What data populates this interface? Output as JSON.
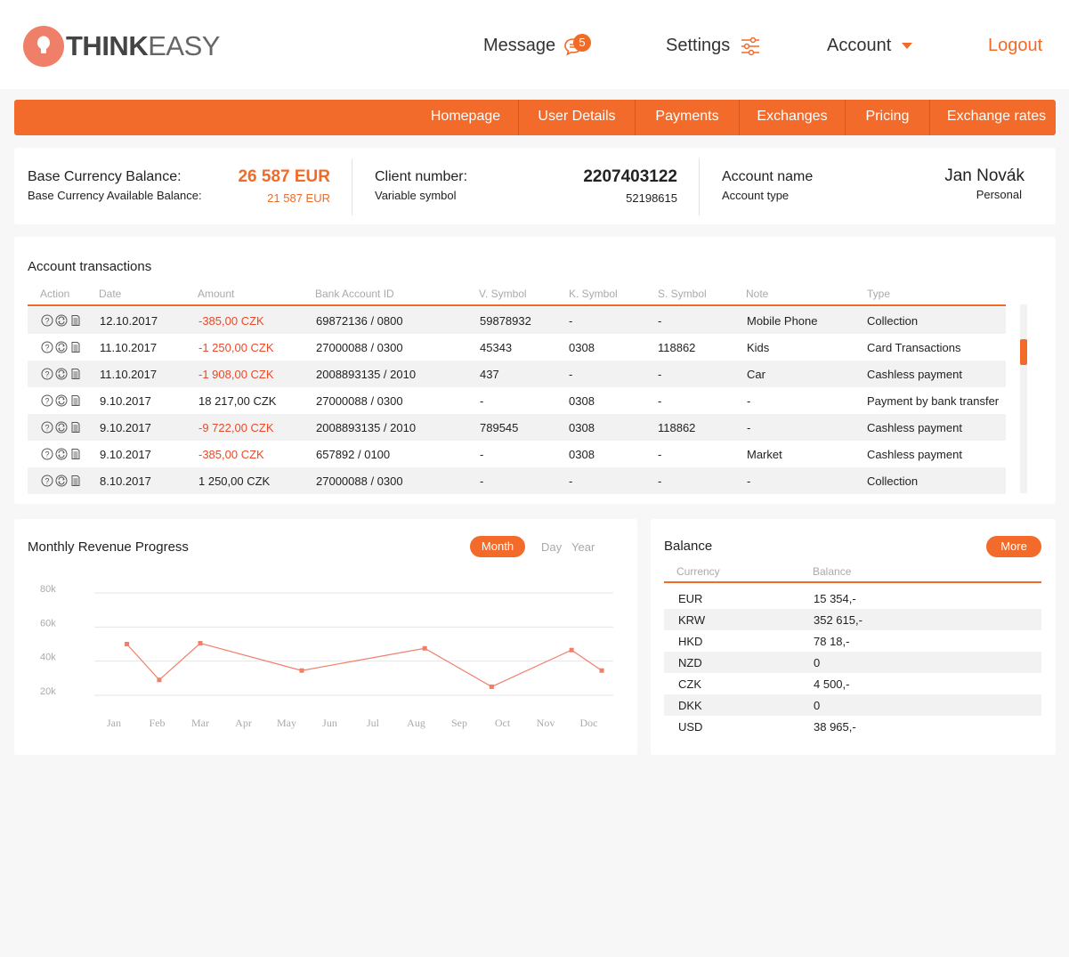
{
  "header": {
    "logo_bold": "THINK",
    "logo_light": "EASY",
    "message_label": "Message",
    "message_count": "5",
    "settings_label": "Settings",
    "account_label": "Account",
    "logout_label": "Logout"
  },
  "menu": [
    "Homepage",
    "User Details",
    "Payments",
    "Exchanges",
    "Pricing",
    "Exchange rates"
  ],
  "summary": {
    "base_balance_label": "Base Currency Balance:",
    "base_balance_value": "26 587 EUR",
    "available_label": "Base Currency Available Balance:",
    "available_value": "21 587 EUR",
    "client_number_label": "Client number:",
    "client_number_value": "2207403122",
    "variable_symbol_label": "Variable symbol",
    "variable_symbol_value": "52198615",
    "account_name_label": "Account name",
    "account_name_value": "Jan Novák",
    "account_type_label": "Account type",
    "account_type_value": "Personal"
  },
  "transactions": {
    "title": "Account transactions",
    "columns": [
      "Action",
      "Date",
      "Amount",
      "Bank Account ID",
      "V. Symbol",
      "K. Symbol",
      "S. Symbol",
      "Note",
      "Type"
    ],
    "rows": [
      {
        "date": "12.10.2017",
        "amount": "-385,00 CZK",
        "negative": true,
        "bank": "69872136 / 0800",
        "vs": "59878932",
        "ks": "-",
        "ss": "-",
        "note": "Mobile Phone",
        "type": "Collection"
      },
      {
        "date": "11.10.2017",
        "amount": "-1 250,00 CZK",
        "negative": true,
        "bank": "27000088 / 0300",
        "vs": "45343",
        "ks": "0308",
        "ss": "118862",
        "note": "Kids",
        "type": "Card Transactions"
      },
      {
        "date": "11.10.2017",
        "amount": "-1 908,00 CZK",
        "negative": true,
        "bank": "2008893135 / 2010",
        "vs": "437",
        "ks": "-",
        "ss": "-",
        "note": "Car",
        "type": "Cashless payment"
      },
      {
        "date": "9.10.2017",
        "amount": "18 217,00 CZK",
        "negative": false,
        "bank": "27000088 / 0300",
        "vs": "-",
        "ks": "0308",
        "ss": "-",
        "note": "-",
        "type": "Payment by bank transfer"
      },
      {
        "date": "9.10.2017",
        "amount": "-9 722,00 CZK",
        "negative": true,
        "bank": "2008893135 / 2010",
        "vs": "789545",
        "ks": "0308",
        "ss": "118862",
        "note": "-",
        "type": "Cashless payment"
      },
      {
        "date": "9.10.2017",
        "amount": "-385,00 CZK",
        "negative": true,
        "bank": "657892 / 0100",
        "vs": "-",
        "ks": "0308",
        "ss": "-",
        "note": "Market",
        "type": "Cashless payment"
      },
      {
        "date": "8.10.2017",
        "amount": "1 250,00 CZK",
        "negative": false,
        "bank": "27000088 / 0300",
        "vs": "-",
        "ks": "-",
        "ss": "-",
        "note": "-",
        "type": "Collection"
      }
    ]
  },
  "revenue": {
    "title": "Monthly Revenue Progress",
    "tabs": {
      "month": "Month",
      "day": "Day",
      "year": "Year"
    }
  },
  "chart_data": {
    "type": "line",
    "categories": [
      "Jan",
      "Feb",
      "Mar",
      "Apr",
      "May",
      "Jun",
      "Jul",
      "Aug",
      "Sep",
      "Oct",
      "Nov",
      "Doc"
    ],
    "series": [
      {
        "values": [
          [
            0.3,
            50000
          ],
          [
            1.05,
            29000
          ],
          [
            2.0,
            50500
          ],
          [
            4.35,
            34500
          ],
          [
            7.2,
            47500
          ],
          [
            8.75,
            25000
          ],
          [
            10.6,
            46500
          ],
          [
            11.3,
            34500
          ]
        ]
      }
    ],
    "y_ticks": [
      "20k",
      "40k",
      "60k",
      "80k"
    ],
    "ylim": [
      20000,
      80000
    ],
    "grid": true,
    "color": "#f07f6a"
  },
  "balance": {
    "title": "Balance",
    "more_label": "More",
    "columns": [
      "Currency",
      "Balance"
    ],
    "rows": [
      {
        "currency": "EUR",
        "balance": "15 354,-"
      },
      {
        "currency": "KRW",
        "balance": "352 615,-"
      },
      {
        "currency": "HKD",
        "balance": "78 18,-"
      },
      {
        "currency": "NZD",
        "balance": "0"
      },
      {
        "currency": "CZK",
        "balance": "4 500,-"
      },
      {
        "currency": "DKK",
        "balance": "0"
      },
      {
        "currency": "USD",
        "balance": "38 965,-"
      }
    ]
  }
}
